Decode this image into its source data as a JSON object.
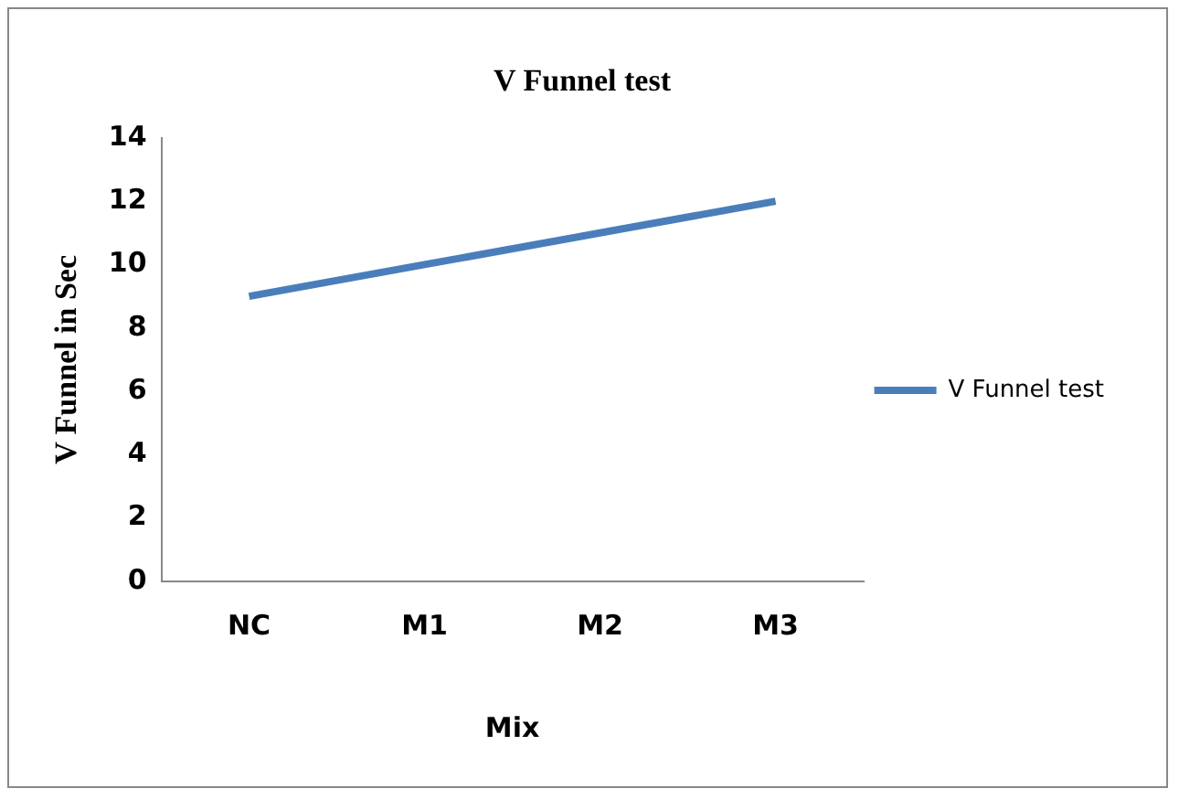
{
  "chart_data": {
    "type": "line",
    "title": "V Funnel test",
    "xlabel": "Mix",
    "ylabel": "V Funnel in Sec",
    "categories": [
      "NC",
      "M1",
      "M2",
      "M3"
    ],
    "series": [
      {
        "name": "V Funnel test",
        "color": "#4a7ebb",
        "values": [
          9,
          10,
          11,
          12
        ]
      }
    ],
    "ylim": [
      0,
      14
    ],
    "yticks": [
      0,
      2,
      4,
      6,
      8,
      10,
      12,
      14
    ],
    "grid": false,
    "legend": "right",
    "marker": "none",
    "line_style": "solid"
  }
}
